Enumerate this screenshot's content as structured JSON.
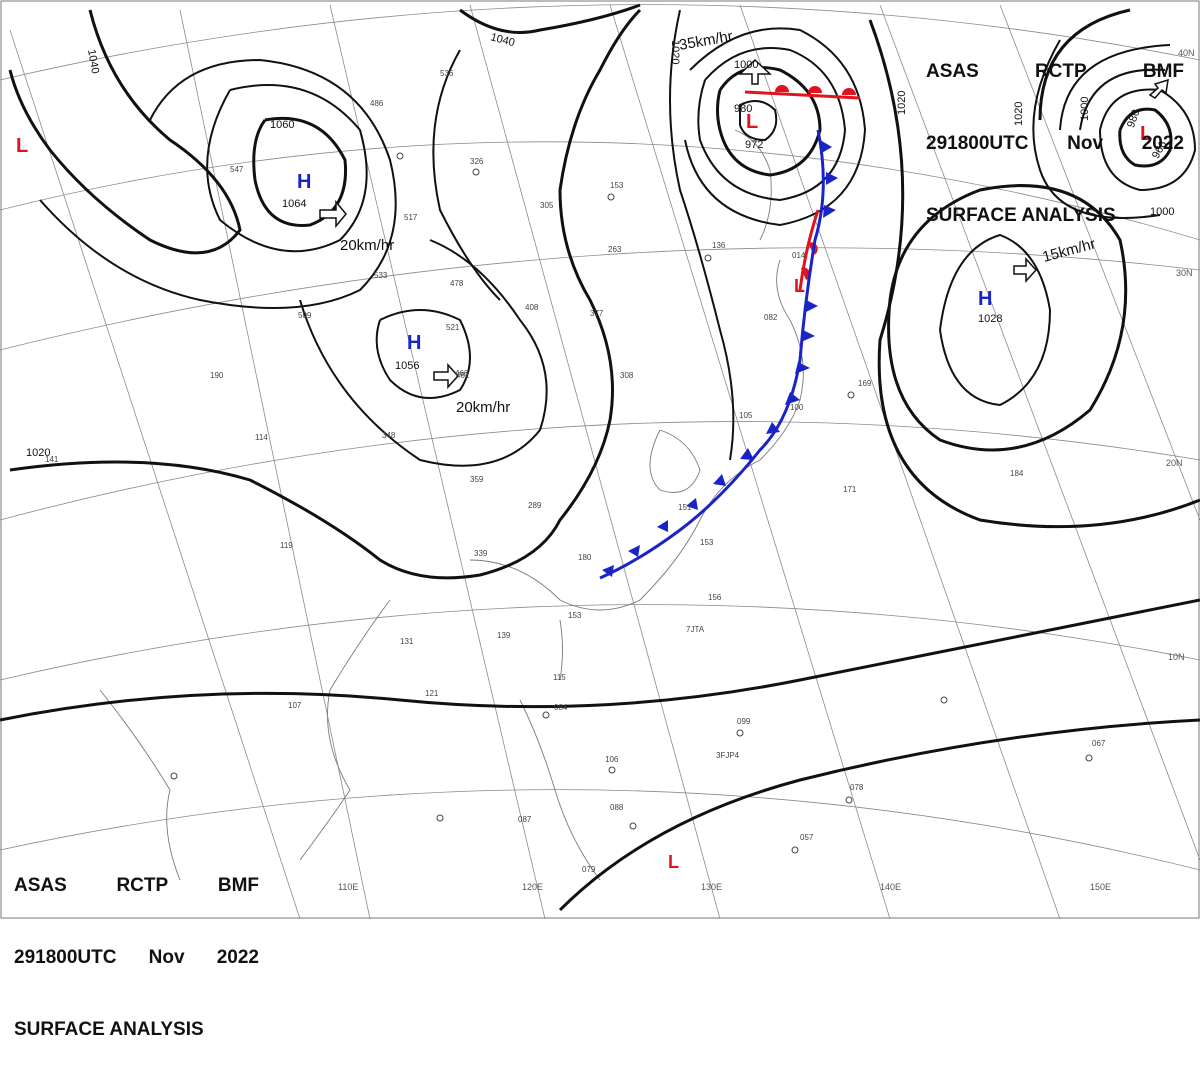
{
  "header_top": {
    "line1": [
      "ASAS",
      "RCTP",
      "BMF"
    ],
    "line2": [
      "291800UTC",
      "Nov",
      "2022"
    ],
    "line3": "SURFACE ANALYSIS"
  },
  "header_bottom": {
    "line1": [
      "ASAS",
      "RCTP",
      "BMF"
    ],
    "line2": [
      "291800UTC",
      "Nov",
      "2022"
    ],
    "line3": "SURFACE ANALYSIS"
  },
  "pressure_centers": [
    {
      "type": "H",
      "value": "1064",
      "color": "#1a23c8"
    },
    {
      "type": "H",
      "value": "1056",
      "color": "#1a23c8"
    },
    {
      "type": "H",
      "value": "1028",
      "color": "#1a23c8"
    },
    {
      "type": "L",
      "value": "972",
      "color": "#e0141e"
    },
    {
      "type": "L",
      "value": "966",
      "color": "#e0141e"
    },
    {
      "type": "L",
      "value": "",
      "color": "#e0141e"
    },
    {
      "type": "L",
      "value": "",
      "color": "#e0141e"
    },
    {
      "type": "L",
      "value": "",
      "color": "#e0141e"
    }
  ],
  "isobar_labels": [
    "1040",
    "1040",
    "1020",
    "1060",
    "1000",
    "980",
    "1020",
    "1020",
    "1000",
    "980",
    "1000",
    "1020"
  ],
  "motion_labels": [
    "20km/hr",
    "20km/hr",
    "35km/hr",
    "15km/hr"
  ],
  "longitude_labels": [
    "110E",
    "120E",
    "130E",
    "140E",
    "150E"
  ],
  "latitude_labels": [
    "40N",
    "30N",
    "20N",
    "10N"
  ],
  "station_numbers": [
    "536",
    "486",
    "326",
    "305",
    "153",
    "547",
    "517",
    "533",
    "478",
    "408",
    "377",
    "509",
    "521",
    "190",
    "114",
    "141",
    "359",
    "339",
    "289",
    "180",
    "153",
    "156",
    "139",
    "131",
    "115",
    "084",
    "107",
    "121",
    "106",
    "088",
    "087",
    "079",
    "099",
    "067",
    "078",
    "057",
    "171",
    "184",
    "169",
    "136",
    "014",
    "308",
    "461",
    "466",
    "348",
    "263",
    "082",
    "105",
    "100",
    "151",
    "153",
    "119"
  ],
  "station_ids": [
    "7JTA",
    "3FJP4"
  ],
  "colors": {
    "isobar": "#111111",
    "warm_front": "#e0141e",
    "cold_front": "#1a23c8",
    "coast": "#7a7a7a",
    "grid": "#8a8a8a"
  }
}
